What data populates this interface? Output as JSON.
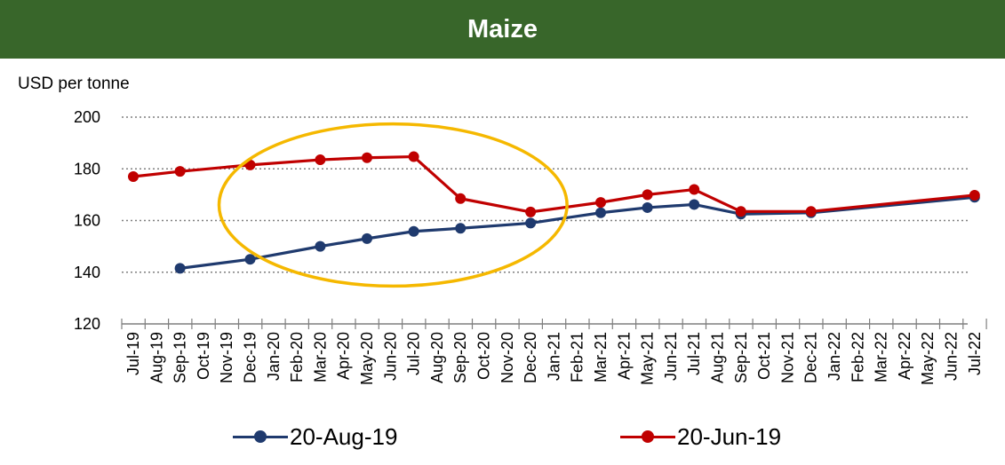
{
  "chart_data": {
    "type": "line",
    "title": "Maize",
    "ylabel": "USD per tonne",
    "xlabel": "",
    "ylim": [
      120,
      200
    ],
    "yticks": [
      120,
      140,
      160,
      180,
      200
    ],
    "gridlines": [
      140,
      160,
      180,
      200
    ],
    "grid": "horizontal dotted",
    "legend": "bottom",
    "x": [
      "Jul-19",
      "Aug-19",
      "Sep-19",
      "Oct-19",
      "Nov-19",
      "Dec-19",
      "Jan-20",
      "Feb-20",
      "Mar-20",
      "Apr-20",
      "May-20",
      "Jun-20",
      "Jul-20",
      "Aug-20",
      "Sep-20",
      "Oct-20",
      "Nov-20",
      "Dec-20",
      "Jan-21",
      "Feb-21",
      "Mar-21",
      "Apr-21",
      "May-21",
      "Jun-21",
      "Jul-21",
      "Aug-21",
      "Sep-21",
      "Oct-21",
      "Nov-21",
      "Dec-21",
      "Jan-22",
      "Feb-22",
      "Mar-22",
      "Apr-22",
      "May-22",
      "Jun-22",
      "Jul-22"
    ],
    "series": [
      {
        "name": "20-Aug-19",
        "color": "#1f3a6e",
        "points": [
          {
            "x": "Sep-19",
            "y": 141.5
          },
          {
            "x": "Dec-19",
            "y": 145
          },
          {
            "x": "Mar-20",
            "y": 150
          },
          {
            "x": "May-20",
            "y": 153
          },
          {
            "x": "Jul-20",
            "y": 155.8
          },
          {
            "x": "Sep-20",
            "y": 157
          },
          {
            "x": "Dec-20",
            "y": 159
          },
          {
            "x": "Mar-21",
            "y": 163
          },
          {
            "x": "May-21",
            "y": 165
          },
          {
            "x": "Jul-21",
            "y": 166.2
          },
          {
            "x": "Sep-21",
            "y": 162.5
          },
          {
            "x": "Dec-21",
            "y": 163
          },
          {
            "x": "Jul-22",
            "y": 169
          }
        ]
      },
      {
        "name": "20-Jun-19",
        "color": "#c00000",
        "points": [
          {
            "x": "Jul-19",
            "y": 177
          },
          {
            "x": "Sep-19",
            "y": 179
          },
          {
            "x": "Dec-19",
            "y": 181.5
          },
          {
            "x": "Mar-20",
            "y": 183.5
          },
          {
            "x": "May-20",
            "y": 184.3
          },
          {
            "x": "Jul-20",
            "y": 184.7
          },
          {
            "x": "Sep-20",
            "y": 168.5
          },
          {
            "x": "Dec-20",
            "y": 163.3
          },
          {
            "x": "Mar-21",
            "y": 167
          },
          {
            "x": "May-21",
            "y": 170
          },
          {
            "x": "Jul-21",
            "y": 172
          },
          {
            "x": "Sep-21",
            "y": 163.5
          },
          {
            "x": "Dec-21",
            "y": 163.5
          },
          {
            "x": "Jul-22",
            "y": 169.8
          }
        ]
      }
    ],
    "annotations": [
      {
        "type": "ellipse",
        "color": "#f5b800",
        "x_range": [
          "Dec-19",
          "Dec-20"
        ],
        "y_range": [
          136,
          196
        ]
      }
    ]
  }
}
